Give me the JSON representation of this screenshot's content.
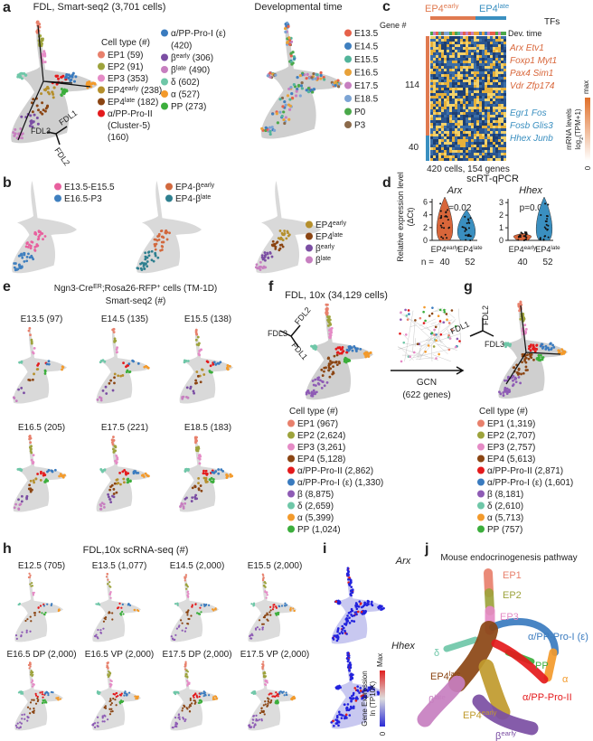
{
  "panels": {
    "a": {
      "label": "a",
      "title": "FDL, Smart-seq2 (3,701 cells)",
      "legend_title": "Cell type (#)",
      "legend": [
        {
          "text": "EP1 (59)",
          "color": "#e8806c"
        },
        {
          "text": "EP2 (91)",
          "color": "#9da33c"
        },
        {
          "text": "EP3 (353)",
          "color": "#e58bc6"
        },
        {
          "text": [
            "EP4",
            {
              "sup": "early"
            },
            " (238)"
          ],
          "color": "#b58f2c"
        },
        {
          "text": [
            "EP4",
            {
              "sup": "late"
            },
            " (182)"
          ],
          "color": "#8b4513"
        },
        {
          "text": "α/PP-Pro-II",
          "extra": [
            "(Cluster-5)",
            "(160)"
          ],
          "color": "#e41a1c"
        },
        {
          "text": "α/PP-Pro-I (ε)",
          "extra": [
            "(420)"
          ],
          "color": "#3a7bbf"
        },
        {
          "text": [
            "β",
            {
              "sup": "early"
            },
            " (306)"
          ],
          "color": "#7b4ea3"
        },
        {
          "text": [
            "β",
            {
              "sup": "late"
            },
            " (490)"
          ],
          "color": "#c77fc0"
        },
        {
          "text": "δ (602)",
          "color": "#6fc7a8"
        },
        {
          "text": "α (527)",
          "color": "#f39a2b"
        },
        {
          "text": "PP (273)",
          "color": "#3cae3c"
        }
      ],
      "axes": [
        "FDL3",
        "FDL1",
        "FDL2"
      ]
    },
    "time": {
      "title": "Developmental time",
      "legend": [
        {
          "text": "E13.5",
          "color": "#e6614a"
        },
        {
          "text": "E14.5",
          "color": "#3f7fbf"
        },
        {
          "text": "E15.5",
          "color": "#52b49a"
        },
        {
          "text": "E16.5",
          "color": "#e8a23a"
        },
        {
          "text": "E17.5",
          "color": "#c77fc0"
        },
        {
          "text": "E18.5",
          "color": "#7ca4d4"
        },
        {
          "text": "P0",
          "color": "#4aa84a"
        },
        {
          "text": "P3",
          "color": "#8b6a4a"
        }
      ]
    },
    "c": {
      "label": "c",
      "groups": [
        {
          "text": [
            "EP4",
            {
              "sup": "early"
            }
          ],
          "color": "#e07a50"
        },
        {
          "text": [
            "EP4",
            {
              "sup": "late"
            }
          ],
          "color": "#3a8fc0"
        }
      ],
      "tfs_title": "TFs",
      "gene_label": "Gene #",
      "dev_label": "Dev. time",
      "gene_counts": [
        114,
        40
      ],
      "tf_up": [
        "Arx Etv1",
        "Foxp1 Myt1",
        "Pax4 Sim1",
        "Vdr Zfp174"
      ],
      "tf_down": [
        "Egr1 Fos",
        "Fosb Glis3",
        "Hhex Junb"
      ],
      "footer": "420 cells, 154 genes",
      "colorbar_max": "max",
      "colorbar_min": 0,
      "colorbar_label": [
        "mRNA levels",
        [
          "log",
          {
            "sub": "2"
          },
          "(TPM+1)"
        ]
      ]
    },
    "b": {
      "label": "b",
      "legend1": [
        {
          "text": "E13.5-E15.5",
          "color": "#e8609e"
        },
        {
          "text": "E16.5-P3",
          "color": "#3f7fbf"
        }
      ],
      "legend2": [
        {
          "text": [
            "EP4-β",
            {
              "sup": "early"
            }
          ],
          "color": "#d2693e"
        },
        {
          "text": [
            "EP4-β",
            {
              "sup": "late"
            }
          ],
          "color": "#2e7f8f"
        }
      ],
      "legend3": [
        {
          "text": [
            "EP4",
            {
              "sup": "early"
            }
          ],
          "color": "#b58f2c"
        },
        {
          "text": [
            "EP4",
            {
              "sup": "late"
            }
          ],
          "color": "#8b4513"
        },
        {
          "text": [
            "β",
            {
              "sup": "early"
            }
          ],
          "color": "#7b4ea3"
        },
        {
          "text": [
            "β",
            {
              "sup": "late"
            }
          ],
          "color": "#c77fc0"
        }
      ]
    },
    "d": {
      "label": "d",
      "title": "scRT-qPCR",
      "ylabel": [
        "Relative expression level",
        "(ΔCt)"
      ],
      "plots": [
        {
          "gene": "Arx",
          "yticks": [
            0,
            2,
            4,
            6
          ],
          "ylim": [
            0,
            6.5
          ],
          "p": "p=0.02"
        },
        {
          "gene": "Hhex",
          "yticks": [
            0,
            1,
            2,
            3
          ],
          "ylim": [
            0,
            3.3
          ],
          "p": "p=0.05"
        }
      ],
      "groups": [
        [
          "EP4",
          {
            "sup": "early"
          }
        ],
        [
          "EP4",
          {
            "sup": "late"
          }
        ]
      ],
      "n_label": "n =",
      "n": [
        40,
        52
      ]
    },
    "e": {
      "label": "e",
      "title": [
        "Ngn3-Cre",
        {
          "sup": "ER"
        },
        ";Rosa26-RFP",
        {
          "sup": "+"
        },
        " cells (TM-1D)"
      ],
      "subtitle": "Smart-seq2 (#)",
      "plots": [
        "E13.5 (97)",
        "E14.5 (135)",
        "E15.5 (138)",
        "E16.5 (205)",
        "E17.5 (221)",
        "E18.5 (183)"
      ]
    },
    "f": {
      "label": "f",
      "title": "FDL, 10x (34,129 cells)",
      "axes": [
        "FDL3",
        "FDL2",
        "FDL1"
      ],
      "arrow_label": [
        "GCN",
        "(622 genes)"
      ],
      "legend_title": "Cell type (#)",
      "legend": [
        {
          "text": "EP1 (967)",
          "color": "#e8806c"
        },
        {
          "text": "EP2 (2,624)",
          "color": "#9da33c"
        },
        {
          "text": "EP3 (3,261)",
          "color": "#e58bc6"
        },
        {
          "text": "EP4 (5,128)",
          "color": "#8b4513"
        },
        {
          "text": "α/PP-Pro-II (2,862)",
          "color": "#e41a1c"
        },
        {
          "text": "α/PP-Pro-I (ε) (1,330)",
          "color": "#3a7bbf"
        },
        {
          "text": "β (8,875)",
          "color": "#8e5bb5"
        },
        {
          "text": "δ (2,659)",
          "color": "#6fc7a8"
        },
        {
          "text": "α (5,399)",
          "color": "#f39a2b"
        },
        {
          "text": "PP (1,024)",
          "color": "#3cae3c"
        }
      ]
    },
    "g": {
      "label": "g",
      "axes": [
        "FDL2",
        "FDL1",
        "FDL3"
      ],
      "legend_title": "Cell type (#)",
      "legend": [
        {
          "text": "EP1 (1,319)",
          "color": "#e8806c"
        },
        {
          "text": "EP2 (2,707)",
          "color": "#9da33c"
        },
        {
          "text": "EP3 (2,757)",
          "color": "#e58bc6"
        },
        {
          "text": "EP4 (5,613)",
          "color": "#8b4513"
        },
        {
          "text": "α/PP-Pro-II (2,871)",
          "color": "#e41a1c"
        },
        {
          "text": "α/PP-Pro-I (ε) (1,601)",
          "color": "#3a7bbf"
        },
        {
          "text": "β (8,181)",
          "color": "#8e5bb5"
        },
        {
          "text": "δ (2,610)",
          "color": "#6fc7a8"
        },
        {
          "text": "α (5,713)",
          "color": "#f39a2b"
        },
        {
          "text": "PP (757)",
          "color": "#3cae3c"
        }
      ]
    },
    "h": {
      "label": "h",
      "title": "FDL,10x scRNA-seq (#)",
      "plots": [
        "E12.5 (705)",
        "E13.5 (1,077)",
        "E14.5 (2,000)",
        "E15.5 (2,000)",
        "E16.5 DP (2,000)",
        "E16.5 VP (2,000)",
        "E17.5 DP (2,000)",
        "E17.5 VP (2,000)"
      ]
    },
    "i": {
      "label": "i",
      "genes": [
        "Arx",
        "Hhex"
      ],
      "colorbar_max": "Max",
      "colorbar_min": 0,
      "colorbar_label": [
        "Gene Expression",
        "ln (TP10K)"
      ]
    },
    "j": {
      "label": "j",
      "title": "Mouse endocrinogenesis pathway",
      "nodes": [
        {
          "text": "EP1",
          "color": "#e8806c"
        },
        {
          "text": "EP2",
          "color": "#9da33c"
        },
        {
          "text": "EP3",
          "color": "#e58bc6"
        },
        {
          "text": "α/PP-Pro-I (ε)",
          "color": "#3a7bbf"
        },
        {
          "text": "δ",
          "color": "#6fc7a8"
        },
        {
          "text": "PP",
          "color": "#3cae3c"
        },
        {
          "text": "α",
          "color": "#f39a2b"
        },
        {
          "text": [
            "EP4",
            {
              "sup": "late"
            }
          ],
          "color": "#8b4513"
        },
        {
          "text": "α/PP-Pro-II",
          "color": "#e41a1c"
        },
        {
          "text": [
            "EP4",
            {
              "sup": "early"
            }
          ],
          "color": "#c09a2c"
        },
        {
          "text": [
            "β",
            {
              "sup": "late"
            }
          ],
          "color": "#c77fc0"
        },
        {
          "text": [
            "β",
            {
              "sup": "early"
            }
          ],
          "color": "#7b4ea3"
        }
      ]
    }
  }
}
